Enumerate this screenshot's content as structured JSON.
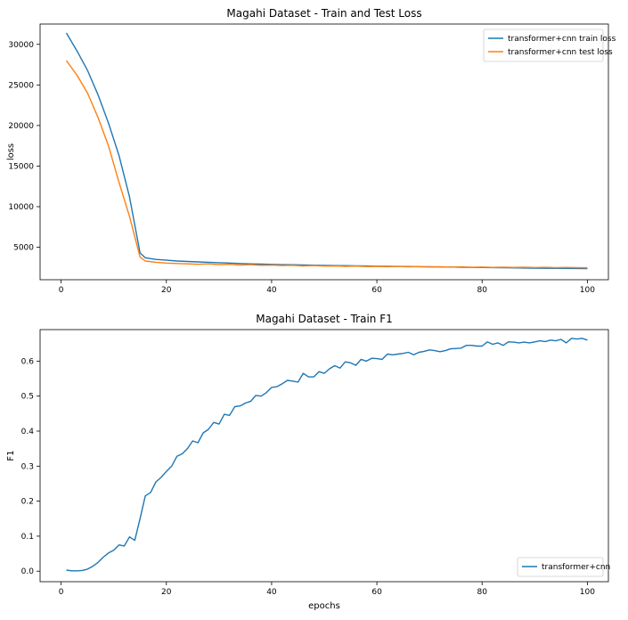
{
  "chart_data": [
    {
      "type": "line",
      "title": "Magahi Dataset - Train and Test Loss",
      "xlabel": "",
      "ylabel": "loss",
      "xlim": [
        -4,
        104
      ],
      "ylim": [
        1000,
        32500
      ],
      "xticks": [
        0,
        20,
        40,
        60,
        80,
        100
      ],
      "yticks": [
        5000,
        10000,
        15000,
        20000,
        25000,
        30000
      ],
      "legend_position": "upper-right",
      "x": [
        1,
        3,
        5,
        7,
        9,
        11,
        13,
        15,
        16,
        18,
        20,
        22,
        24,
        26,
        28,
        30,
        32,
        34,
        36,
        38,
        40,
        42,
        44,
        46,
        48,
        50,
        52,
        54,
        56,
        58,
        60,
        62,
        64,
        66,
        68,
        70,
        72,
        74,
        76,
        78,
        80,
        82,
        84,
        86,
        88,
        90,
        92,
        94,
        96,
        98,
        100
      ],
      "series": [
        {
          "name": "transformer+cnn train loss",
          "color": "#1f77b4",
          "values": [
            31400,
            29200,
            26800,
            23800,
            20300,
            16300,
            11200,
            4300,
            3700,
            3500,
            3400,
            3300,
            3250,
            3200,
            3150,
            3100,
            3050,
            3000,
            2950,
            2920,
            2890,
            2860,
            2840,
            2810,
            2790,
            2770,
            2750,
            2730,
            2710,
            2690,
            2670,
            2650,
            2640,
            2620,
            2600,
            2590,
            2570,
            2560,
            2540,
            2520,
            2500,
            2490,
            2470,
            2460,
            2440,
            2430,
            2410,
            2400,
            2390,
            2380,
            2370
          ]
        },
        {
          "name": "transformer+cnn test loss",
          "color": "#ff7f0e",
          "values": [
            28000,
            26200,
            24000,
            21000,
            17500,
            13000,
            8800,
            3800,
            3300,
            3150,
            3050,
            3000,
            2950,
            2900,
            2950,
            2850,
            2900,
            2800,
            2850,
            2780,
            2800,
            2750,
            2780,
            2700,
            2750,
            2680,
            2700,
            2650,
            2680,
            2620,
            2650,
            2600,
            2630,
            2580,
            2620,
            2560,
            2600,
            2550,
            2580,
            2530,
            2560,
            2520,
            2550,
            2510,
            2540,
            2500,
            2530,
            2490,
            2520,
            2480,
            2470
          ]
        }
      ]
    },
    {
      "type": "line",
      "title": "Magahi Dataset - Train F1",
      "xlabel": "epochs",
      "ylabel": "F1",
      "xlim": [
        -4,
        104
      ],
      "ylim": [
        -0.03,
        0.69
      ],
      "xticks": [
        0,
        20,
        40,
        60,
        80,
        100
      ],
      "yticks": [
        0.0,
        0.1,
        0.2,
        0.3,
        0.4,
        0.5,
        0.6
      ],
      "legend_position": "lower-right",
      "x": [
        1,
        2,
        3,
        4,
        5,
        6,
        7,
        8,
        9,
        10,
        11,
        12,
        13,
        14,
        15,
        16,
        17,
        18,
        19,
        20,
        21,
        22,
        23,
        24,
        25,
        26,
        27,
        28,
        29,
        30,
        31,
        32,
        33,
        34,
        35,
        36,
        37,
        38,
        39,
        40,
        41,
        42,
        43,
        44,
        45,
        46,
        47,
        48,
        49,
        50,
        51,
        52,
        53,
        54,
        55,
        56,
        57,
        58,
        59,
        60,
        61,
        62,
        63,
        64,
        65,
        66,
        67,
        68,
        69,
        70,
        71,
        72,
        73,
        74,
        75,
        76,
        77,
        78,
        79,
        80,
        81,
        82,
        83,
        84,
        85,
        86,
        87,
        88,
        89,
        90,
        91,
        92,
        93,
        94,
        95,
        96,
        97,
        98,
        99,
        100
      ],
      "series": [
        {
          "name": "transformer+cnn",
          "color": "#1f77b4",
          "values": [
            0.003,
            0.001,
            0.001,
            0.002,
            0.006,
            0.014,
            0.025,
            0.04,
            0.052,
            0.06,
            0.075,
            0.072,
            0.098,
            0.088,
            0.15,
            0.215,
            0.225,
            0.255,
            0.268,
            0.285,
            0.3,
            0.328,
            0.335,
            0.35,
            0.372,
            0.367,
            0.395,
            0.405,
            0.425,
            0.42,
            0.448,
            0.445,
            0.47,
            0.472,
            0.48,
            0.485,
            0.502,
            0.5,
            0.51,
            0.525,
            0.527,
            0.535,
            0.545,
            0.543,
            0.54,
            0.565,
            0.555,
            0.555,
            0.57,
            0.565,
            0.578,
            0.587,
            0.58,
            0.598,
            0.595,
            0.588,
            0.605,
            0.6,
            0.608,
            0.607,
            0.605,
            0.62,
            0.618,
            0.62,
            0.622,
            0.625,
            0.618,
            0.625,
            0.628,
            0.632,
            0.63,
            0.627,
            0.63,
            0.635,
            0.636,
            0.637,
            0.645,
            0.645,
            0.643,
            0.643,
            0.655,
            0.648,
            0.652,
            0.645,
            0.655,
            0.654,
            0.652,
            0.654,
            0.652,
            0.655,
            0.658,
            0.656,
            0.66,
            0.658,
            0.662,
            0.652,
            0.665,
            0.663,
            0.665,
            0.66
          ]
        }
      ]
    }
  ]
}
